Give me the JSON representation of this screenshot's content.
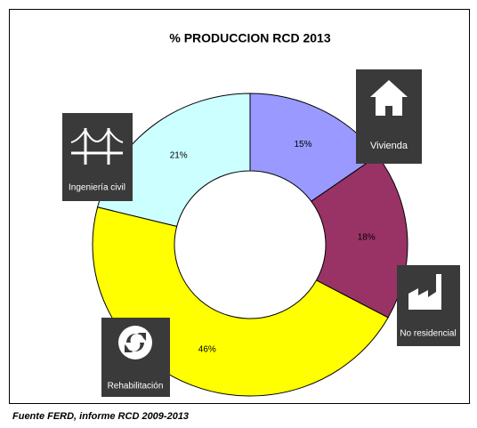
{
  "chart_data": {
    "type": "donut",
    "title": "% PRODUCCION RCD 2013",
    "categories": [
      "Vivienda",
      "No residencial",
      "Rehabilitación",
      "Ingeniería civil"
    ],
    "values": [
      15,
      18,
      46,
      21
    ],
    "value_labels": [
      "15%",
      "18%",
      "46%",
      "21%"
    ],
    "colors": [
      "#9999ff",
      "#993366",
      "#ffff00",
      "#ccffff"
    ],
    "source": "Fuente FERD, informe RCD 2009-2013"
  }
}
